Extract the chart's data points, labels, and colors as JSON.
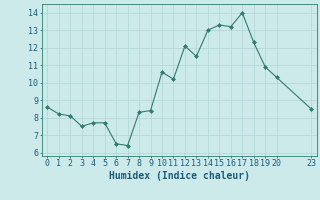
{
  "x": [
    0,
    1,
    2,
    3,
    4,
    5,
    6,
    7,
    8,
    9,
    10,
    11,
    12,
    13,
    14,
    15,
    16,
    17,
    18,
    19,
    20,
    23
  ],
  "y": [
    8.6,
    8.2,
    8.1,
    7.5,
    7.7,
    7.7,
    6.5,
    6.4,
    8.3,
    8.4,
    10.6,
    10.2,
    12.1,
    11.5,
    13.0,
    13.3,
    13.2,
    14.0,
    12.3,
    10.9,
    10.3,
    8.5
  ],
  "line_color": "#2e7d6e",
  "marker": "D",
  "marker_size": 2,
  "bg_color": "#cdeaea",
  "grid_color": "#afd4d4",
  "xlabel": "Humidex (Indice chaleur)",
  "xlabel_color": "#1a5c7a",
  "xlabel_fontsize": 7,
  "ylabel_ticks": [
    6,
    7,
    8,
    9,
    10,
    11,
    12,
    13,
    14
  ],
  "xlim": [
    -0.5,
    23.5
  ],
  "ylim": [
    5.8,
    14.5
  ],
  "xtick_labels": [
    "0",
    "1",
    "2",
    "3",
    "4",
    "5",
    "6",
    "7",
    "8",
    "9",
    "10",
    "11",
    "12",
    "13",
    "14",
    "15",
    "16",
    "17",
    "18",
    "19",
    "20",
    "23"
  ],
  "xtick_positions": [
    0,
    1,
    2,
    3,
    4,
    5,
    6,
    7,
    8,
    9,
    10,
    11,
    12,
    13,
    14,
    15,
    16,
    17,
    18,
    19,
    20,
    23
  ],
  "tick_color": "#1a5c7a",
  "tick_fontsize": 6,
  "spine_color": "#2e7d6e",
  "linewidth": 0.8
}
